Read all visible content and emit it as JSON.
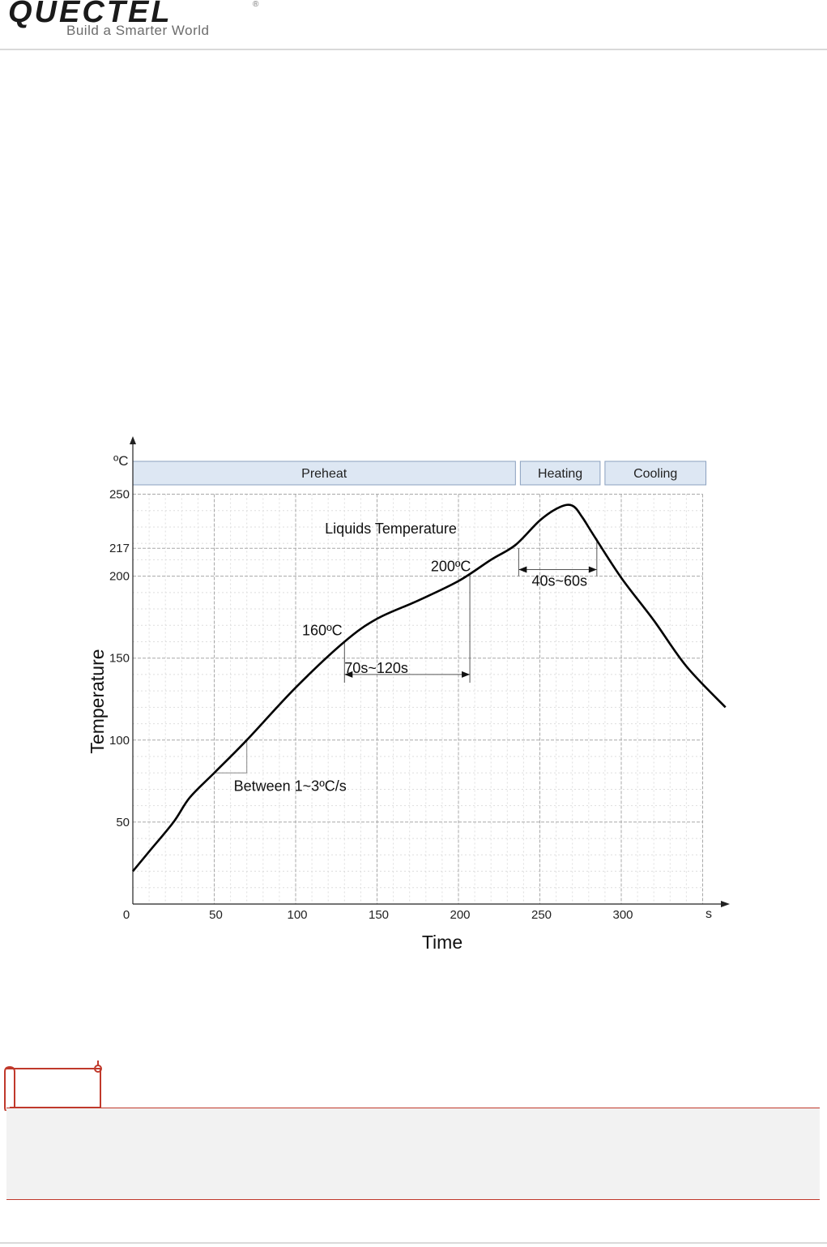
{
  "header": {
    "logo_text": "QUECTEL",
    "tagline": "Build a Smarter World",
    "reg_mark": "®"
  },
  "chart_data": {
    "type": "line",
    "title": "",
    "xlabel": "Time",
    "ylabel": "Temperature",
    "x_unit": "s",
    "y_unit": "ºC",
    "xlim": [
      0,
      350
    ],
    "ylim": [
      0,
      250
    ],
    "x_ticks": [
      "0",
      "50",
      "100",
      "150",
      "200",
      "250",
      "300"
    ],
    "y_ticks": [
      "50",
      "100",
      "150",
      "200",
      "217",
      "250"
    ],
    "grid": true,
    "phases": [
      {
        "label": "Preheat",
        "start": 0,
        "end": 235
      },
      {
        "label": "Heating",
        "start": 238,
        "end": 287
      },
      {
        "label": "Cooling",
        "start": 290,
        "end": 352
      }
    ],
    "series": [
      {
        "values": [
          [
            0,
            20
          ],
          [
            10,
            32
          ],
          [
            25,
            50
          ],
          [
            35,
            65
          ],
          [
            50,
            80
          ],
          [
            70,
            100
          ],
          [
            100,
            132
          ],
          [
            130,
            160
          ],
          [
            150,
            174
          ],
          [
            175,
            185
          ],
          [
            200,
            197
          ],
          [
            220,
            210
          ],
          [
            235,
            219
          ],
          [
            250,
            234
          ],
          [
            262,
            242
          ],
          [
            270,
            243
          ],
          [
            276,
            236
          ],
          [
            283,
            225
          ],
          [
            300,
            199
          ],
          [
            320,
            173
          ],
          [
            340,
            145
          ],
          [
            364,
            120
          ]
        ]
      }
    ],
    "annotations": [
      {
        "text": "Liquids Temperature",
        "x": 118,
        "y": 226
      },
      {
        "text": "200ºC",
        "x": 183,
        "y": 203
      },
      {
        "text": "160ºC",
        "x": 104,
        "y": 164
      },
      {
        "text": "70s~120s",
        "x": 130,
        "y": 141
      },
      {
        "text": "40s~60s",
        "x": 245,
        "y": 194
      },
      {
        "text": "Between 1~3ºC/s",
        "x": 62,
        "y": 69
      }
    ],
    "ranges": [
      {
        "x1": 130,
        "x2": 207,
        "y": 140
      },
      {
        "x1": 237,
        "x2": 285,
        "y": 204
      }
    ],
    "slope_marker": {
      "x1": 50,
      "x2": 70,
      "y1": 80,
      "y2": 100
    }
  }
}
